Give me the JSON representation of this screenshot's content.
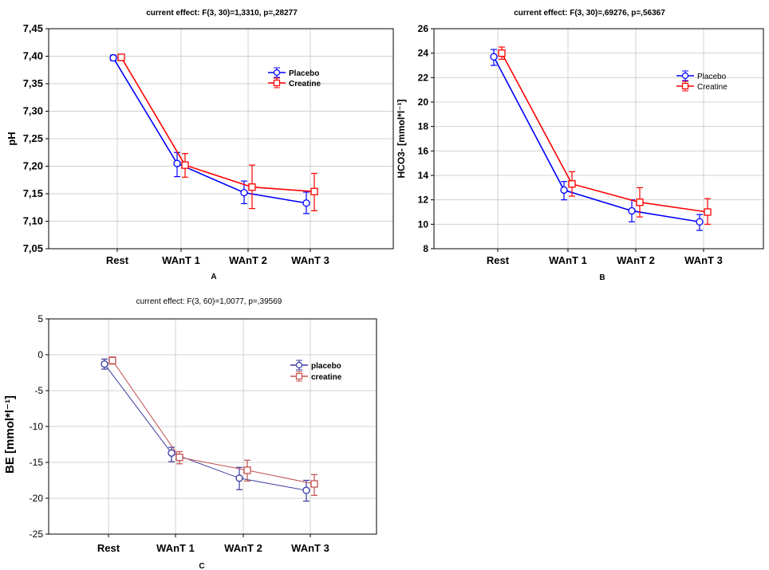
{
  "chart_data": [
    {
      "id": "A",
      "type": "line",
      "title": "current effect: F(3, 30)=1,3310, p=,28277",
      "ylabel": "pH",
      "xlabel": "",
      "caption": "A",
      "categories": [
        "Rest",
        "WAnT 1",
        "WAnT 2",
        "WAnT 3"
      ],
      "ylim": [
        7.05,
        7.45
      ],
      "yticks": [
        7.05,
        7.1,
        7.15,
        7.2,
        7.25,
        7.3,
        7.35,
        7.4,
        7.45
      ],
      "ytick_labels": [
        "7,05",
        "7,10",
        "7,15",
        "7,20",
        "7,25",
        "7,30",
        "7,35",
        "7,40",
        "7,45"
      ],
      "grid": true,
      "legend_position": "top-right",
      "series": [
        {
          "name": "Placebo",
          "color": "#0000ff",
          "marker": "circle",
          "values": [
            7.397,
            7.205,
            7.152,
            7.133
          ],
          "err_low": [
            7.392,
            7.181,
            7.132,
            7.114
          ],
          "err_high": [
            7.402,
            7.225,
            7.173,
            7.153
          ]
        },
        {
          "name": "Creatine",
          "color": "#ff0000",
          "marker": "square",
          "values": [
            7.398,
            7.202,
            7.162,
            7.154
          ],
          "err_low": [
            7.392,
            7.18,
            7.123,
            7.119
          ],
          "err_high": [
            7.402,
            7.223,
            7.202,
            7.187
          ]
        }
      ]
    },
    {
      "id": "B",
      "type": "line",
      "title": "current effect: F(3, 30)=,69276, p=,56367",
      "ylabel": "HCO3- [mmol*l⁻¹]",
      "xlabel": "",
      "caption": "B",
      "categories": [
        "Rest",
        "WAnT 1",
        "WAnT 2",
        "WAnT 3"
      ],
      "ylim": [
        8,
        26
      ],
      "yticks": [
        8,
        10,
        12,
        14,
        16,
        18,
        20,
        22,
        24,
        26
      ],
      "ytick_labels": [
        "8",
        "10",
        "12",
        "14",
        "16",
        "18",
        "20",
        "22",
        "24",
        "26"
      ],
      "grid": true,
      "legend_position": "top-right",
      "series": [
        {
          "name": "Placebo",
          "color": "#0000ff",
          "marker": "circle",
          "values": [
            23.7,
            12.8,
            11.1,
            10.2
          ],
          "err_low": [
            23.0,
            12.0,
            10.2,
            9.5
          ],
          "err_high": [
            24.3,
            13.5,
            12.0,
            10.8
          ]
        },
        {
          "name": "Creatine",
          "color": "#ff0000",
          "marker": "square",
          "values": [
            24.0,
            13.3,
            11.8,
            11.0
          ],
          "err_low": [
            23.5,
            12.3,
            10.6,
            10.0
          ],
          "err_high": [
            24.5,
            14.3,
            13.0,
            12.1
          ]
        }
      ]
    },
    {
      "id": "C",
      "type": "line",
      "title": "current effect: F(3, 60)=1,0077, p=,39569",
      "ylabel": "BE [mmol*l⁻¹]",
      "xlabel": "",
      "caption": "C",
      "categories": [
        "Rest",
        "WAnT 1",
        "WAnT 2",
        "WAnT 3"
      ],
      "ylim": [
        -25,
        5
      ],
      "yticks": [
        -25,
        -20,
        -15,
        -10,
        -5,
        0,
        5
      ],
      "ytick_labels": [
        "-25",
        "-20",
        "-15",
        "-10",
        "-5",
        "0",
        "5"
      ],
      "grid": true,
      "legend_position": "top-right",
      "series": [
        {
          "name": "placebo",
          "color": "#3a3aa0",
          "marker": "circle",
          "values": [
            -1.3,
            -13.7,
            -17.2,
            -18.9
          ],
          "err_low": [
            -2.0,
            -14.9,
            -18.8,
            -20.4
          ],
          "err_high": [
            -0.6,
            -12.9,
            -15.7,
            -17.5
          ]
        },
        {
          "name": "creatine",
          "color": "#c0504d",
          "marker": "square",
          "values": [
            -0.8,
            -14.3,
            -16.1,
            -18.0
          ],
          "err_low": [
            -1.3,
            -15.2,
            -17.6,
            -19.6
          ],
          "err_high": [
            -0.3,
            -13.5,
            -14.7,
            -16.7
          ]
        }
      ]
    }
  ]
}
